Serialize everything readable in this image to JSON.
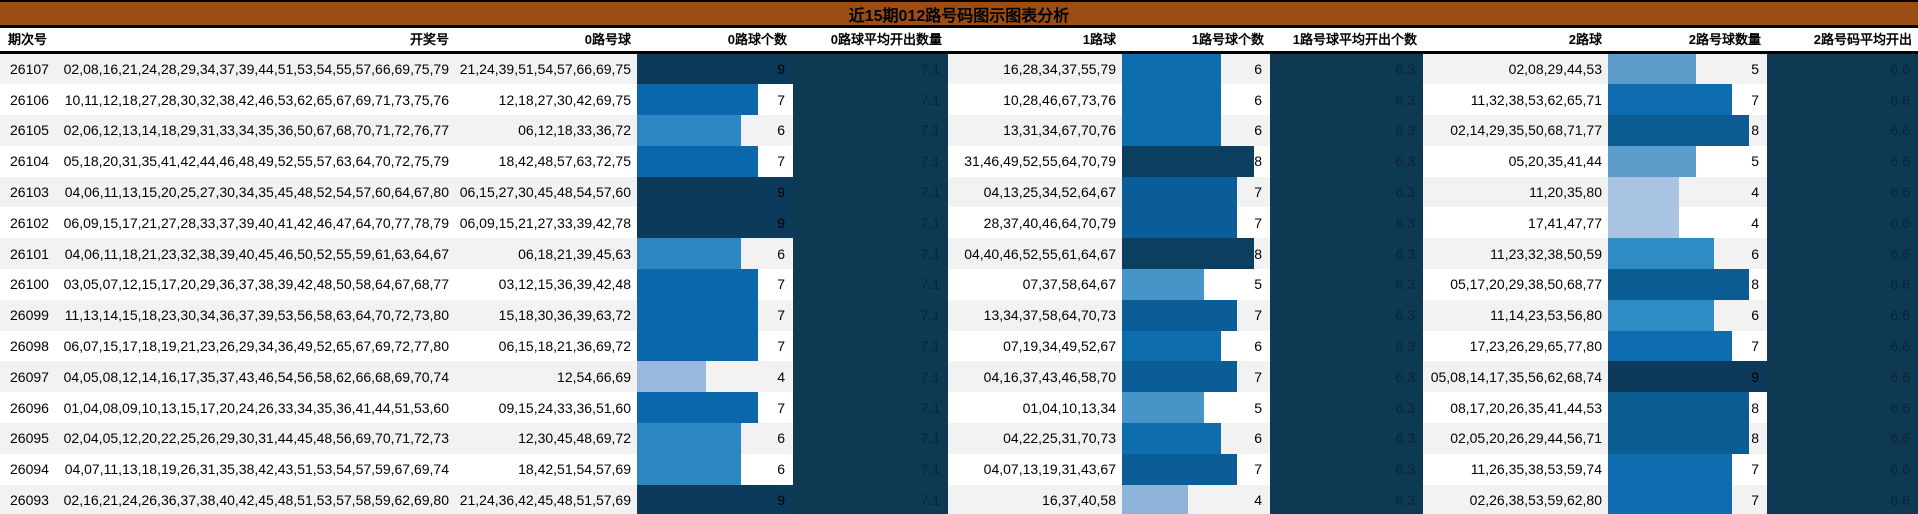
{
  "title": "近15期012路号码图示图表分析",
  "columns": [
    "期次号",
    "开奖号",
    "0路号球",
    "0路球个数",
    "0路球平均开出数量",
    "1路球",
    "1路号球个数",
    "1路号球平均开出个数",
    "2路球",
    "2路号球数量",
    "2路号码平均开出"
  ],
  "colors": {
    "title_bg": "#9a4d15",
    "header_bg": "#ffffff",
    "row_odd_bg": "#f2f2f2",
    "row_even_bg": "#ffffff",
    "avg_col_bg": "#0d3a52",
    "avg_text": "#0d2334",
    "text": "#000000",
    "bar_colors": {
      "road0": {
        "4": "#9ab7dd",
        "6": "#2b86c1",
        "7": "#0a67ab",
        "9": "#0c3a5a"
      },
      "road1": {
        "4": "#8fb4d9",
        "5": "#4795c8",
        "6": "#0e6dad",
        "7": "#0a5d97",
        "8": "#0c3e60"
      },
      "road2": {
        "4": "#a9c4e2",
        "5": "#5b9ccb",
        "6": "#2e8bc3",
        "7": "#0d6dae",
        "8": "#0b5c92",
        "9": "#0c3a58"
      }
    }
  },
  "chart_data": {
    "type": "table",
    "title": "近15期012路号码图示图表分析",
    "bar_scale_max": 9,
    "averages": {
      "road0": "7.1",
      "road1": "6.3",
      "road2": "6.6"
    },
    "rows": [
      {
        "period": "26107",
        "draw_numbers": "02,08,16,21,24,28,29,34,37,39,44,51,53,54,55,57,66,69,75,79",
        "road0_balls": "21,24,39,51,54,57,66,69,75",
        "road0_count": 9,
        "road1_balls": "16,28,34,37,55,79",
        "road1_count": 6,
        "road2_balls": "02,08,29,44,53",
        "road2_count": 5
      },
      {
        "period": "26106",
        "draw_numbers": "10,11,12,18,27,28,30,32,38,42,46,53,62,65,67,69,71,73,75,76",
        "road0_balls": "12,18,27,30,42,69,75",
        "road0_count": 7,
        "road1_balls": "10,28,46,67,73,76",
        "road1_count": 6,
        "road2_balls": "11,32,38,53,62,65,71",
        "road2_count": 7
      },
      {
        "period": "26105",
        "draw_numbers": "02,06,12,13,14,18,29,31,33,34,35,36,50,67,68,70,71,72,76,77",
        "road0_balls": "06,12,18,33,36,72",
        "road0_count": 6,
        "road1_balls": "13,31,34,67,70,76",
        "road1_count": 6,
        "road2_balls": "02,14,29,35,50,68,71,77",
        "road2_count": 8
      },
      {
        "period": "26104",
        "draw_numbers": "05,18,20,31,35,41,42,44,46,48,49,52,55,57,63,64,70,72,75,79",
        "road0_balls": "18,42,48,57,63,72,75",
        "road0_count": 7,
        "road1_balls": "31,46,49,52,55,64,70,79",
        "road1_count": 8,
        "road2_balls": "05,20,35,41,44",
        "road2_count": 5
      },
      {
        "period": "26103",
        "draw_numbers": "04,06,11,13,15,20,25,27,30,34,35,45,48,52,54,57,60,64,67,80",
        "road0_balls": "06,15,27,30,45,48,54,57,60",
        "road0_count": 9,
        "road1_balls": "04,13,25,34,52,64,67",
        "road1_count": 7,
        "road2_balls": "11,20,35,80",
        "road2_count": 4
      },
      {
        "period": "26102",
        "draw_numbers": "06,09,15,17,21,27,28,33,37,39,40,41,42,46,47,64,70,77,78,79",
        "road0_balls": "06,09,15,21,27,33,39,42,78",
        "road0_count": 9,
        "road1_balls": "28,37,40,46,64,70,79",
        "road1_count": 7,
        "road2_balls": "17,41,47,77",
        "road2_count": 4
      },
      {
        "period": "26101",
        "draw_numbers": "04,06,11,18,21,23,32,38,39,40,45,46,50,52,55,59,61,63,64,67",
        "road0_balls": "06,18,21,39,45,63",
        "road0_count": 6,
        "road1_balls": "04,40,46,52,55,61,64,67",
        "road1_count": 8,
        "road2_balls": "11,23,32,38,50,59",
        "road2_count": 6
      },
      {
        "period": "26100",
        "draw_numbers": "03,05,07,12,15,17,20,29,36,37,38,39,42,48,50,58,64,67,68,77",
        "road0_balls": "03,12,15,36,39,42,48",
        "road0_count": 7,
        "road1_balls": "07,37,58,64,67",
        "road1_count": 5,
        "road2_balls": "05,17,20,29,38,50,68,77",
        "road2_count": 8
      },
      {
        "period": "26099",
        "draw_numbers": "11,13,14,15,18,23,30,34,36,37,39,53,56,58,63,64,70,72,73,80",
        "road0_balls": "15,18,30,36,39,63,72",
        "road0_count": 7,
        "road1_balls": "13,34,37,58,64,70,73",
        "road1_count": 7,
        "road2_balls": "11,14,23,53,56,80",
        "road2_count": 6
      },
      {
        "period": "26098",
        "draw_numbers": "06,07,15,17,18,19,21,23,26,29,34,36,49,52,65,67,69,72,77,80",
        "road0_balls": "06,15,18,21,36,69,72",
        "road0_count": 7,
        "road1_balls": "07,19,34,49,52,67",
        "road1_count": 6,
        "road2_balls": "17,23,26,29,65,77,80",
        "road2_count": 7
      },
      {
        "period": "26097",
        "draw_numbers": "04,05,08,12,14,16,17,35,37,43,46,54,56,58,62,66,68,69,70,74",
        "road0_balls": "12,54,66,69",
        "road0_count": 4,
        "road1_balls": "04,16,37,43,46,58,70",
        "road1_count": 7,
        "road2_balls": "05,08,14,17,35,56,62,68,74",
        "road2_count": 9
      },
      {
        "period": "26096",
        "draw_numbers": "01,04,08,09,10,13,15,17,20,24,26,33,34,35,36,41,44,51,53,60",
        "road0_balls": "09,15,24,33,36,51,60",
        "road0_count": 7,
        "road1_balls": "01,04,10,13,34",
        "road1_count": 5,
        "road2_balls": "08,17,20,26,35,41,44,53",
        "road2_count": 8
      },
      {
        "period": "26095",
        "draw_numbers": "02,04,05,12,20,22,25,26,29,30,31,44,45,48,56,69,70,71,72,73",
        "road0_balls": "12,30,45,48,69,72",
        "road0_count": 6,
        "road1_balls": "04,22,25,31,70,73",
        "road1_count": 6,
        "road2_balls": "02,05,20,26,29,44,56,71",
        "road2_count": 8
      },
      {
        "period": "26094",
        "draw_numbers": "04,07,11,13,18,19,26,31,35,38,42,43,51,53,54,57,59,67,69,74",
        "road0_balls": "18,42,51,54,57,69",
        "road0_count": 6,
        "road1_balls": "04,07,13,19,31,43,67",
        "road1_count": 7,
        "road2_balls": "11,26,35,38,53,59,74",
        "road2_count": 7
      },
      {
        "period": "26093",
        "draw_numbers": "02,16,21,24,26,36,37,38,40,42,45,48,51,53,57,58,59,62,69,80",
        "road0_balls": "21,24,36,42,45,48,51,57,69",
        "road0_count": 9,
        "road1_balls": "16,37,40,58",
        "road1_count": 4,
        "road2_balls": "02,26,38,53,59,62,80",
        "road2_count": 7
      }
    ]
  }
}
